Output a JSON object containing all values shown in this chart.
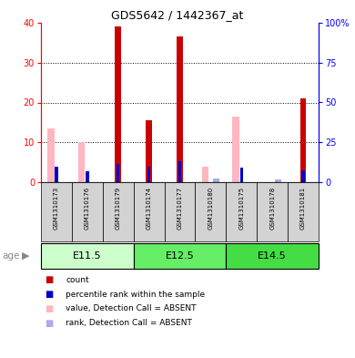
{
  "title": "GDS5642 / 1442367_at",
  "samples": [
    "GSM1310173",
    "GSM1310176",
    "GSM1310179",
    "GSM1310174",
    "GSM1310177",
    "GSM1310180",
    "GSM1310175",
    "GSM1310178",
    "GSM1310181"
  ],
  "age_groups": [
    {
      "label": "E11.5",
      "start": 0,
      "end": 3,
      "color": "#CCFFCC"
    },
    {
      "label": "E12.5",
      "start": 3,
      "end": 6,
      "color": "#66EE66"
    },
    {
      "label": "E14.5",
      "start": 6,
      "end": 9,
      "color": "#44DD44"
    }
  ],
  "count_values": [
    0.3,
    0.3,
    39.0,
    15.5,
    36.5,
    0.3,
    0.3,
    0.3,
    21.0
  ],
  "rank_values": [
    9.5,
    7.0,
    11.5,
    9.8,
    13.0,
    0.0,
    9.0,
    0.0,
    7.5
  ],
  "absent_value_values": [
    13.5,
    10.0,
    0.0,
    0.0,
    0.0,
    4.0,
    16.5,
    0.0,
    0.0
  ],
  "absent_rank_values": [
    0.0,
    0.0,
    0.0,
    0.0,
    0.0,
    2.5,
    0.0,
    1.5,
    0.0
  ],
  "ylim_left": [
    0,
    40
  ],
  "ylim_right": [
    0,
    100
  ],
  "yticks_left": [
    0,
    10,
    20,
    30,
    40
  ],
  "yticks_right": [
    0,
    25,
    50,
    75,
    100
  ],
  "ytick_labels_right": [
    "0",
    "25",
    "50",
    "75",
    "100%"
  ],
  "count_color": "#CC0000",
  "rank_color": "#0000CC",
  "absent_value_color": "#FFB6C1",
  "absent_rank_color": "#AAAAEE",
  "sample_bg": "#D3D3D3",
  "age_label": "age"
}
